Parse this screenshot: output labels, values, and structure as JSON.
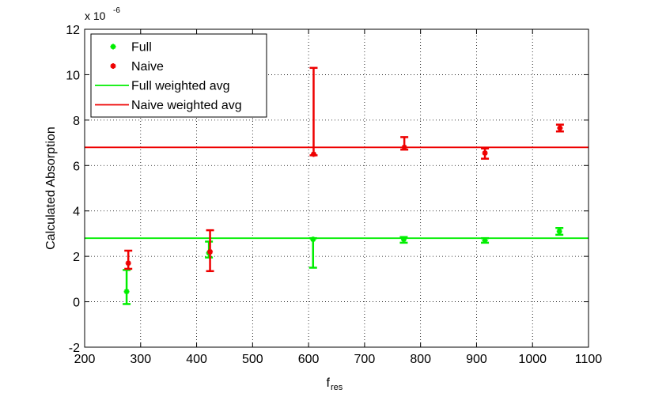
{
  "chart_data": {
    "type": "scatter",
    "xlabel": "f",
    "xlabel_sub": "res",
    "ylabel": "Calculated Absorption",
    "y_exponent_label": "x 10",
    "y_exponent_power": "-6",
    "xlim": [
      200,
      1100
    ],
    "ylim": [
      -2,
      12
    ],
    "x_ticks": [
      200,
      300,
      400,
      500,
      600,
      700,
      800,
      900,
      1000,
      1100
    ],
    "y_ticks": [
      -2,
      0,
      2,
      4,
      6,
      8,
      10,
      12
    ],
    "x_tick_labels": [
      "200",
      "300",
      "400",
      "500",
      "600",
      "700",
      "800",
      "900",
      "1000",
      "1100"
    ],
    "y_tick_labels": [
      "-2",
      "0",
      "2",
      "4",
      "6",
      "8",
      "10",
      "12"
    ],
    "grid": true,
    "legend_position": "top-left",
    "series": [
      {
        "name": "Full",
        "color": "#00ee00",
        "marker": "star",
        "x": [
          275,
          422,
          608,
          770,
          915,
          1048
        ],
        "y": [
          0.45,
          2.15,
          2.75,
          2.75,
          2.7,
          3.1
        ],
        "err_low": [
          -0.1,
          1.95,
          1.5,
          2.6,
          2.6,
          2.95
        ],
        "err_high": [
          1.4,
          2.65,
          2.8,
          2.85,
          2.8,
          3.25
        ]
      },
      {
        "name": "Naive",
        "color": "#ee0000",
        "marker": "star",
        "x": [
          278,
          424,
          609,
          771,
          915,
          1049
        ],
        "y": [
          1.7,
          2.2,
          6.5,
          6.8,
          6.55,
          7.65
        ],
        "err_low": [
          1.45,
          1.35,
          6.45,
          6.7,
          6.3,
          7.5
        ],
        "err_high": [
          2.25,
          3.15,
          10.3,
          7.25,
          6.75,
          7.8
        ]
      }
    ],
    "reference_lines": [
      {
        "name": "Full weighted avg",
        "color": "#00ee00",
        "y": 2.8
      },
      {
        "name": "Naive weighted avg",
        "color": "#ee0000",
        "y": 6.8
      }
    ]
  }
}
